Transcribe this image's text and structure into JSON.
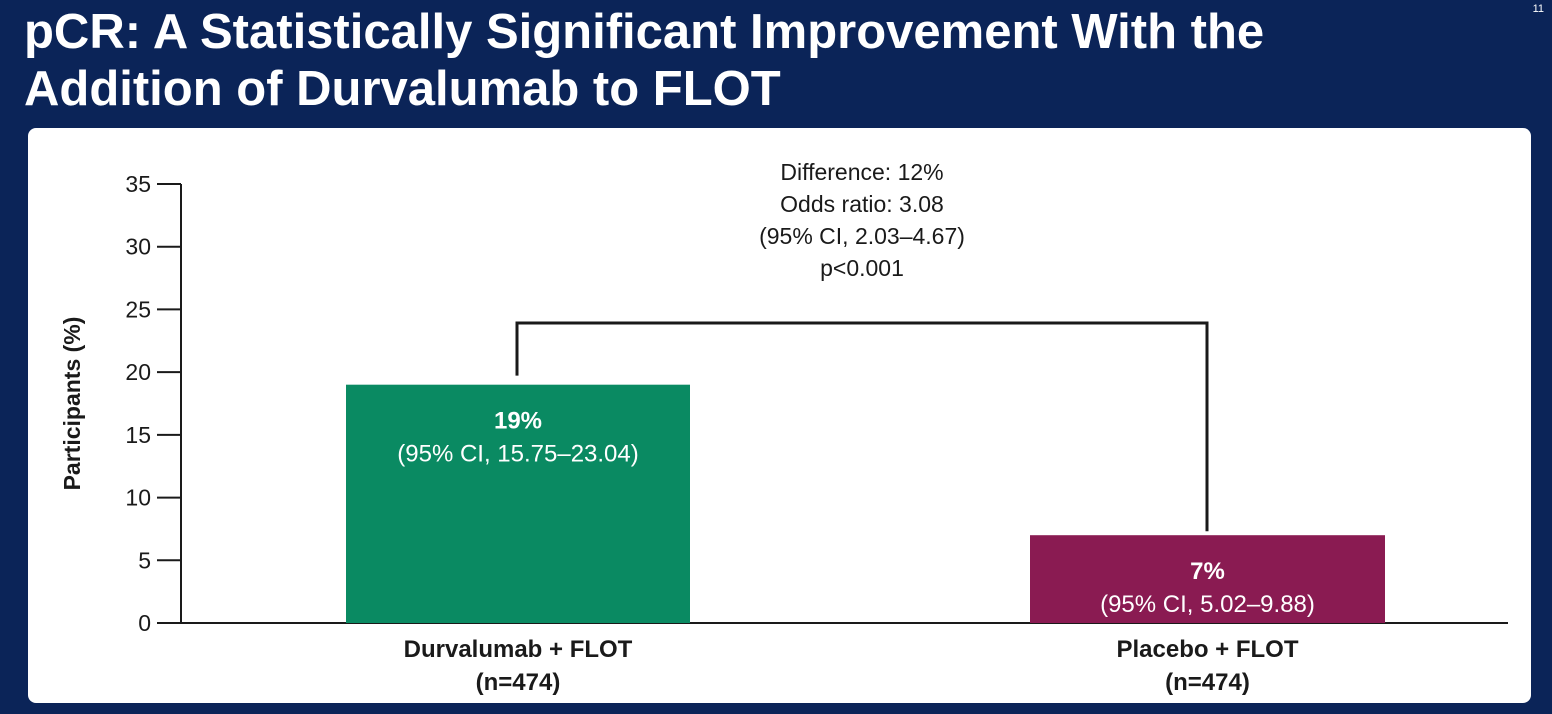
{
  "slide": {
    "number": "11",
    "title_lines": [
      "pCR: A Statistically Significant Improvement With the",
      "Addition of Durvalumab to FLOT"
    ]
  },
  "colors": {
    "background": "#0b2458",
    "panel": "#ffffff",
    "durvalumab_bar": "#0a8a62",
    "placebo_bar": "#8a1b52",
    "axis": "#1a1a1a"
  },
  "chart_data": {
    "type": "bar",
    "title": "",
    "xlabel": "",
    "ylabel": "Participants (%)",
    "ylim": [
      0,
      35
    ],
    "yticks": [
      0,
      5,
      10,
      15,
      20,
      25,
      30,
      35
    ],
    "grid": false,
    "legend": "none",
    "categories": [
      {
        "line1": "Durvalumab + FLOT",
        "line2": "(n=474)"
      },
      {
        "line1": "Placebo + FLOT",
        "line2": "(n=474)"
      }
    ],
    "values": [
      19,
      7
    ],
    "bar_colors": [
      "#0a8a62",
      "#8a1b52"
    ],
    "data_labels": [
      {
        "value": "19%",
        "ci": "(95% CI, 15.75–23.04)"
      },
      {
        "value": "7%",
        "ci": "(95% CI, 5.02–9.88)"
      }
    ],
    "annotation": {
      "lines": [
        "Difference: 12%",
        "Odds ratio: 3.08",
        "(95% CI, 2.03–4.67)",
        "p<0.001"
      ]
    }
  }
}
